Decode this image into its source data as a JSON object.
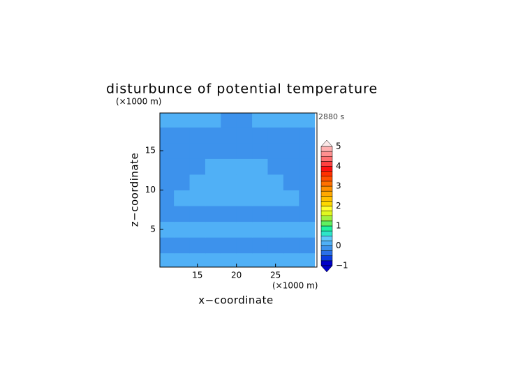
{
  "chart_data": {
    "type": "contour",
    "title": "disturbunce of potential temperature",
    "time_label": "2880 s",
    "x_label": "x−coordinate",
    "y_label": "z−coordinate",
    "x_unit": "(×1000 m)",
    "y_unit": "(×1000 m)",
    "xlim": [
      10.2,
      30.3
    ],
    "ylim": [
      0.2,
      19.8
    ],
    "xticks": [
      15,
      20,
      25
    ],
    "yticks": [
      5,
      10,
      15
    ],
    "x": [
      11,
      13,
      15,
      17,
      19,
      21,
      23,
      25,
      27,
      29
    ],
    "y": [
      1,
      3,
      5,
      7,
      9,
      11,
      13,
      15,
      17,
      19
    ],
    "z": [
      [
        0.1,
        0.1,
        0.1,
        0.1,
        0.1,
        0.1,
        0.1,
        0.1,
        0.1,
        0.1
      ],
      [
        -0.1,
        -0.1,
        -0.1,
        -0.1,
        -0.1,
        -0.1,
        -0.1,
        -0.1,
        -0.1,
        -0.1
      ],
      [
        0.1,
        0.1,
        0.1,
        0.1,
        0.1,
        0.1,
        0.1,
        0.1,
        0.1,
        0.1
      ],
      [
        -0.1,
        -0.1,
        -0.1,
        -0.1,
        -0.1,
        -0.1,
        -0.1,
        -0.1,
        -0.1,
        -0.1
      ],
      [
        -0.1,
        0.1,
        0.1,
        0.1,
        0.1,
        0.1,
        0.1,
        0.1,
        0.1,
        -0.1
      ],
      [
        -0.1,
        -0.1,
        0.1,
        0.1,
        0.1,
        0.1,
        0.1,
        0.1,
        -0.1,
        -0.1
      ],
      [
        -0.1,
        -0.1,
        -0.1,
        0.1,
        0.1,
        0.1,
        0.1,
        -0.1,
        -0.1,
        -0.1
      ],
      [
        -0.1,
        -0.1,
        -0.1,
        -0.1,
        -0.1,
        -0.1,
        -0.1,
        -0.1,
        -0.1,
        -0.1
      ],
      [
        -0.1,
        -0.1,
        -0.1,
        -0.1,
        -0.1,
        -0.1,
        -0.1,
        -0.1,
        -0.1,
        -0.1
      ],
      [
        0.1,
        0.1,
        0.1,
        0.1,
        -0.1,
        -0.1,
        0.1,
        0.1,
        0.1,
        0.1
      ]
    ],
    "colorbar": {
      "levels": [
        -1,
        -0.75,
        -0.5,
        -0.25,
        0,
        0.25,
        0.5,
        0.75,
        1,
        1.25,
        1.5,
        1.75,
        2,
        2.25,
        2.5,
        2.75,
        3,
        3.25,
        3.5,
        3.75,
        4,
        4.25,
        4.5,
        4.75,
        5
      ],
      "colors": [
        "#0000c8",
        "#0a3ce0",
        "#2a6fe8",
        "#3d92ec",
        "#50b0f6",
        "#60c8fa",
        "#2ee6c8",
        "#20f0a0",
        "#60f060",
        "#a0f040",
        "#e0f820",
        "#ffff30",
        "#ffd800",
        "#ffc000",
        "#ffa800",
        "#ff9000",
        "#ff7000",
        "#ff5000",
        "#ff3000",
        "#ff1010",
        "#ff4040",
        "#ff7070",
        "#ff9090",
        "#ffb0b0"
      ],
      "ticks": [
        {
          "value": -1,
          "label": "−1"
        },
        0,
        1,
        2,
        3,
        4,
        5
      ]
    }
  }
}
